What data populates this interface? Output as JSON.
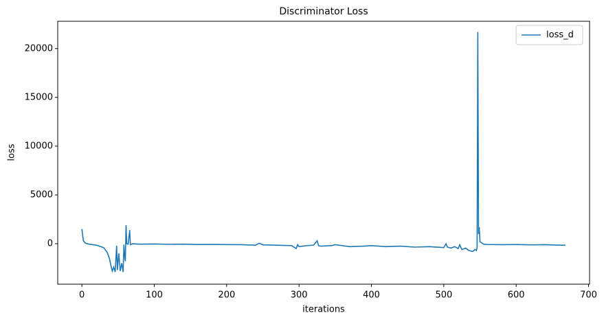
{
  "chart_data": {
    "type": "line",
    "title": "Discriminator Loss",
    "x_label": "iterations",
    "y_label": "loss",
    "x": [
      0,
      2,
      5,
      10,
      20,
      30,
      35,
      38,
      40,
      42,
      44,
      46,
      48,
      49,
      51,
      53,
      55,
      57,
      58,
      59,
      60,
      61,
      62,
      64,
      66,
      67,
      70,
      80,
      100,
      120,
      140,
      160,
      180,
      200,
      220,
      240,
      245,
      250,
      270,
      290,
      296,
      298,
      300,
      305,
      310,
      320,
      325,
      327,
      330,
      345,
      350,
      370,
      390,
      400,
      420,
      440,
      460,
      480,
      500,
      503,
      505,
      510,
      515,
      520,
      522,
      525,
      530,
      535,
      540,
      543,
      545,
      546,
      547,
      548,
      549,
      550,
      552,
      555,
      560,
      580,
      600,
      620,
      640,
      660,
      668
    ],
    "series": [
      {
        "name": "loss_d",
        "color": "#1f77b4",
        "values": [
          1500,
          300,
          50,
          -50,
          -150,
          -400,
          -900,
          -1500,
          -2200,
          -2800,
          -2400,
          -2900,
          -200,
          -2700,
          -1000,
          -2800,
          -2000,
          -2900,
          -100,
          -1200,
          -1800,
          1900,
          0,
          -50,
          1400,
          -100,
          0,
          -50,
          -30,
          -60,
          -50,
          -80,
          -70,
          -90,
          -100,
          -150,
          50,
          -120,
          -150,
          -200,
          -500,
          -100,
          -300,
          -250,
          -200,
          -150,
          300,
          -200,
          -250,
          -200,
          -100,
          -300,
          -250,
          -200,
          -300,
          -250,
          -350,
          -300,
          -400,
          0,
          -350,
          -450,
          -300,
          -500,
          -100,
          -600,
          -450,
          -700,
          -800,
          -600,
          -700,
          -400,
          21700,
          1000,
          1700,
          200,
          100,
          -50,
          -80,
          -100,
          -80,
          -120,
          -100,
          -150,
          -150
        ]
      }
    ],
    "xlim": [
      -33.4,
      701.4
    ],
    "ylim": [
      -4150,
      22800
    ],
    "xticks": [
      0,
      100,
      200,
      300,
      400,
      500,
      600,
      700
    ],
    "yticks": [
      0,
      5000,
      10000,
      15000,
      20000
    ],
    "legend": "upper right",
    "grid": false
  }
}
